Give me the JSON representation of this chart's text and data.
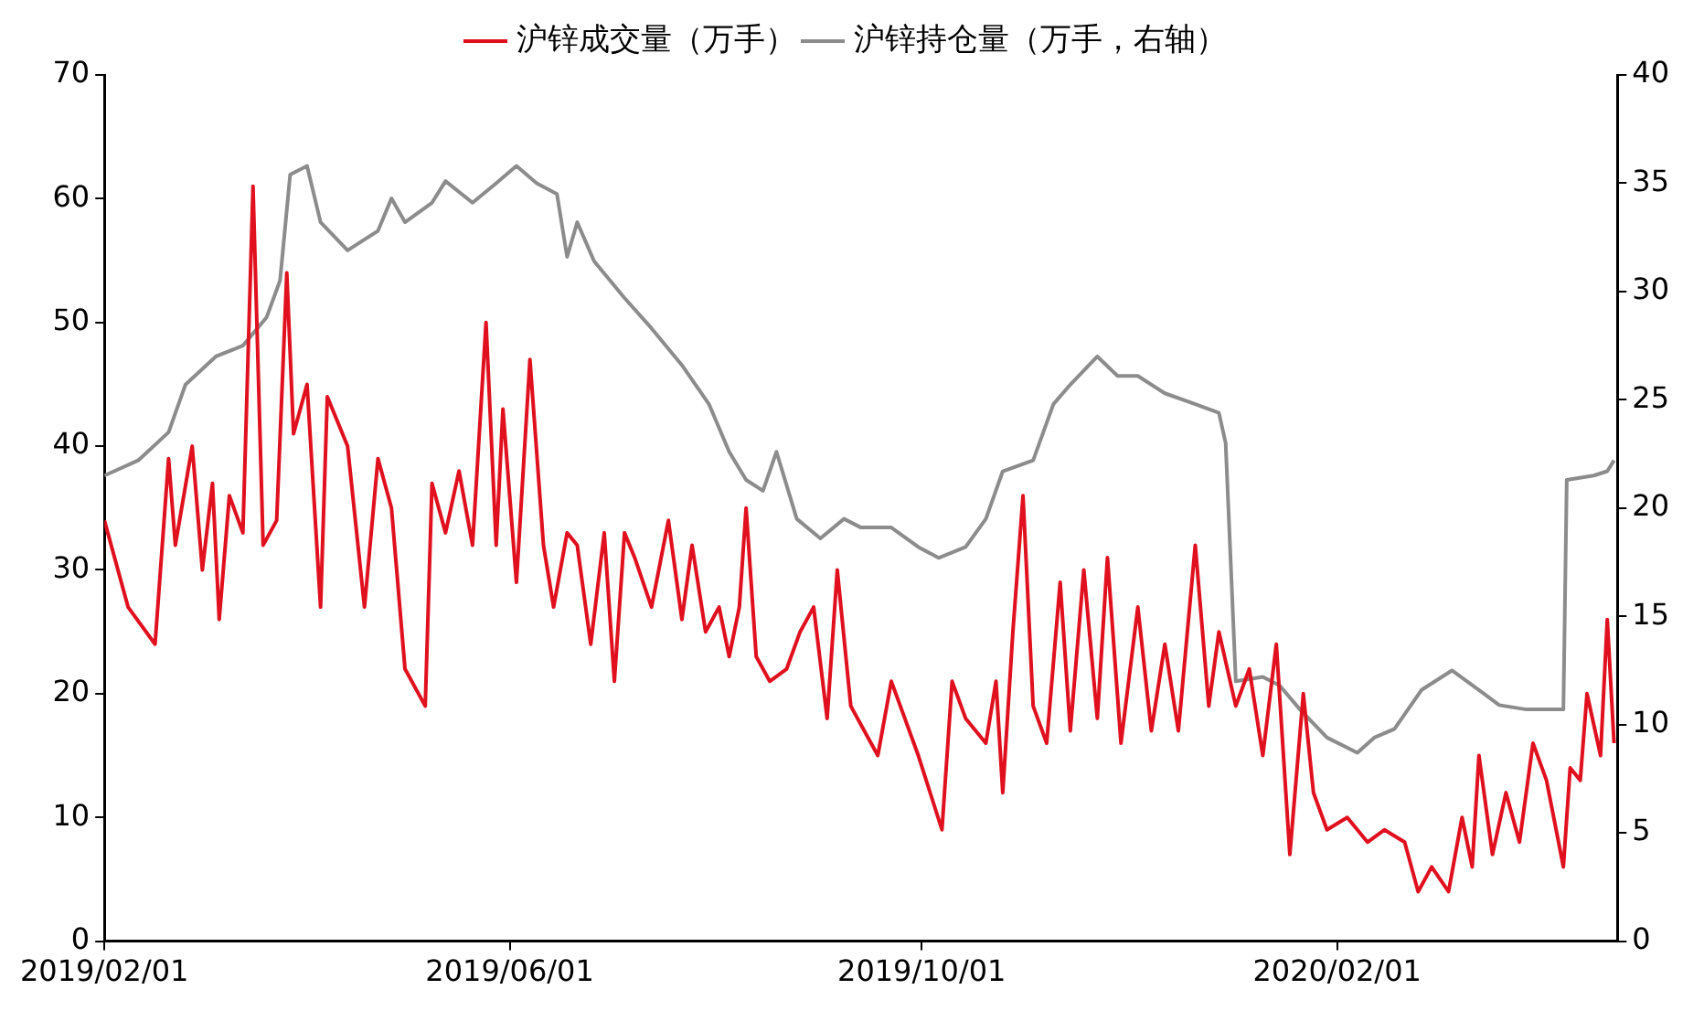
{
  "chart_data": {
    "type": "line",
    "xlim": [
      "2019-02-01",
      "2020-04-24"
    ],
    "xticks": [
      {
        "value": "2019-02-01",
        "label": "2019/02/01"
      },
      {
        "value": "2019-06-01",
        "label": "2019/06/01"
      },
      {
        "value": "2019-10-01",
        "label": "2019/10/01"
      },
      {
        "value": "2020-02-01",
        "label": "2020/02/01"
      }
    ],
    "ylim": [
      0,
      70
    ],
    "yticks": [
      0,
      10,
      20,
      30,
      40,
      50,
      60,
      70
    ],
    "y2lim": [
      0,
      40
    ],
    "y2ticks": [
      0,
      5,
      10,
      15,
      20,
      25,
      30,
      35,
      40
    ],
    "grid": false,
    "legend": "top",
    "marker": "none",
    "line_style": "solid",
    "series": [
      {
        "name": "沪锌成交量（万手）",
        "color": "#e0101e",
        "x": [
          "2019-02-01",
          "2019-02-08",
          "2019-02-16",
          "2019-02-20",
          "2019-02-22",
          "2019-02-27",
          "2019-03-02",
          "2019-03-05",
          "2019-03-07",
          "2019-03-10",
          "2019-03-14",
          "2019-03-17",
          "2019-03-20",
          "2019-03-24",
          "2019-03-27",
          "2019-03-29",
          "2019-04-02",
          "2019-04-06",
          "2019-04-08",
          "2019-04-14",
          "2019-04-19",
          "2019-04-23",
          "2019-04-27",
          "2019-05-01",
          "2019-05-07",
          "2019-05-09",
          "2019-05-13",
          "2019-05-17",
          "2019-05-21",
          "2019-05-25",
          "2019-05-28",
          "2019-05-30",
          "2019-06-03",
          "2019-06-07",
          "2019-06-11",
          "2019-06-14",
          "2019-06-18",
          "2019-06-21",
          "2019-06-25",
          "2019-06-29",
          "2019-07-02",
          "2019-07-05",
          "2019-07-08",
          "2019-07-13",
          "2019-07-18",
          "2019-07-22",
          "2019-07-25",
          "2019-07-29",
          "2019-08-02",
          "2019-08-05",
          "2019-08-08",
          "2019-08-10",
          "2019-08-13",
          "2019-08-17",
          "2019-08-22",
          "2019-08-26",
          "2019-08-30",
          "2019-09-03",
          "2019-09-06",
          "2019-09-10",
          "2019-09-14",
          "2019-09-18",
          "2019-09-22",
          "2019-09-26",
          "2019-09-30",
          "2019-10-07",
          "2019-10-10",
          "2019-10-14",
          "2019-10-20",
          "2019-10-23",
          "2019-10-25",
          "2019-10-28",
          "2019-10-31",
          "2019-11-03",
          "2019-11-07",
          "2019-11-11",
          "2019-11-14",
          "2019-11-18",
          "2019-11-22",
          "2019-11-25",
          "2019-11-29",
          "2019-12-04",
          "2019-12-08",
          "2019-12-12",
          "2019-12-16",
          "2019-12-21",
          "2019-12-25",
          "2019-12-28",
          "2020-01-02",
          "2020-01-06",
          "2020-01-10",
          "2020-01-14",
          "2020-01-18",
          "2020-01-22",
          "2020-01-25",
          "2020-01-29",
          "2020-02-04",
          "2020-02-10",
          "2020-02-15",
          "2020-02-21",
          "2020-02-25",
          "2020-02-29",
          "2020-03-05",
          "2020-03-09",
          "2020-03-12",
          "2020-03-14",
          "2020-03-18",
          "2020-03-22",
          "2020-03-26",
          "2020-03-30",
          "2020-04-03",
          "2020-04-08",
          "2020-04-10",
          "2020-04-13",
          "2020-04-15",
          "2020-04-19",
          "2020-04-21",
          "2020-04-23"
        ],
        "values": [
          34,
          27,
          24,
          39,
          32,
          40,
          30,
          37,
          26,
          36,
          33,
          61,
          32,
          34,
          54,
          41,
          45,
          27,
          44,
          40,
          27,
          39,
          35,
          22,
          19,
          37,
          33,
          38,
          32,
          50,
          32,
          43,
          29,
          47,
          32,
          27,
          33,
          32,
          24,
          33,
          21,
          33,
          31,
          27,
          34,
          26,
          32,
          25,
          27,
          23,
          27,
          35,
          23,
          21,
          22,
          25,
          27,
          18,
          30,
          19,
          17,
          15,
          21,
          18,
          15,
          9,
          21,
          18,
          16,
          21,
          12,
          25,
          36,
          19,
          16,
          29,
          17,
          30,
          18,
          31,
          16,
          27,
          17,
          24,
          17,
          32,
          19,
          25,
          19,
          22,
          15,
          24,
          7,
          20,
          12,
          9,
          10,
          8,
          9,
          8,
          4,
          6,
          4,
          10,
          6,
          15,
          7,
          12,
          8,
          16,
          13,
          6,
          14,
          13,
          20,
          15,
          26,
          16
        ]
      },
      {
        "name": "沪锌持仓量（万手，右轴）",
        "color": "#8c8c8c",
        "axis": "y2",
        "x": [
          "2019-02-01",
          "2019-02-11",
          "2019-02-20",
          "2019-02-25",
          "2019-03-06",
          "2019-03-14",
          "2019-03-21",
          "2019-03-25",
          "2019-03-28",
          "2019-04-02",
          "2019-04-06",
          "2019-04-14",
          "2019-04-23",
          "2019-04-27",
          "2019-05-01",
          "2019-05-09",
          "2019-05-13",
          "2019-05-21",
          "2019-05-28",
          "2019-06-03",
          "2019-06-09",
          "2019-06-15",
          "2019-06-18",
          "2019-06-21",
          "2019-06-26",
          "2019-07-05",
          "2019-07-13",
          "2019-07-22",
          "2019-07-30",
          "2019-08-05",
          "2019-08-10",
          "2019-08-15",
          "2019-08-19",
          "2019-08-25",
          "2019-09-01",
          "2019-09-08",
          "2019-09-13",
          "2019-09-22",
          "2019-09-30",
          "2019-10-06",
          "2019-10-14",
          "2019-10-20",
          "2019-10-25",
          "2019-11-03",
          "2019-11-09",
          "2019-11-14",
          "2019-11-22",
          "2019-11-28",
          "2019-12-04",
          "2019-12-12",
          "2019-12-21",
          "2019-12-28",
          "2019-12-30",
          "2020-01-02",
          "2020-01-10",
          "2020-01-15",
          "2020-01-21",
          "2020-01-29",
          "2020-02-07",
          "2020-02-12",
          "2020-02-18",
          "2020-02-26",
          "2020-03-06",
          "2020-03-14",
          "2020-03-20",
          "2020-03-28",
          "2020-04-08",
          "2020-04-09",
          "2020-04-17",
          "2020-04-21",
          "2020-04-23"
        ],
        "values": [
          21.5,
          22.2,
          23.5,
          25.7,
          27,
          27.5,
          28.8,
          30.5,
          35.4,
          35.8,
          33.2,
          31.9,
          32.8,
          34.3,
          33.2,
          34.1,
          35.1,
          34.1,
          35,
          35.8,
          35,
          34.5,
          31.6,
          33.2,
          31.4,
          29.7,
          28.3,
          26.6,
          24.8,
          22.6,
          21.3,
          20.8,
          22.6,
          19.5,
          18.6,
          19.5,
          19.1,
          19.1,
          18.2,
          17.7,
          18.2,
          19.5,
          21.7,
          22.2,
          24.8,
          25.7,
          27,
          26.1,
          26.1,
          25.3,
          24.8,
          24.4,
          23,
          12,
          12.2,
          11.8,
          10.7,
          9.4,
          8.7,
          9.4,
          9.8,
          11.6,
          12.5,
          11.6,
          10.9,
          10.7,
          10.7,
          21.3,
          21.5,
          21.7,
          22.2
        ]
      }
    ]
  }
}
